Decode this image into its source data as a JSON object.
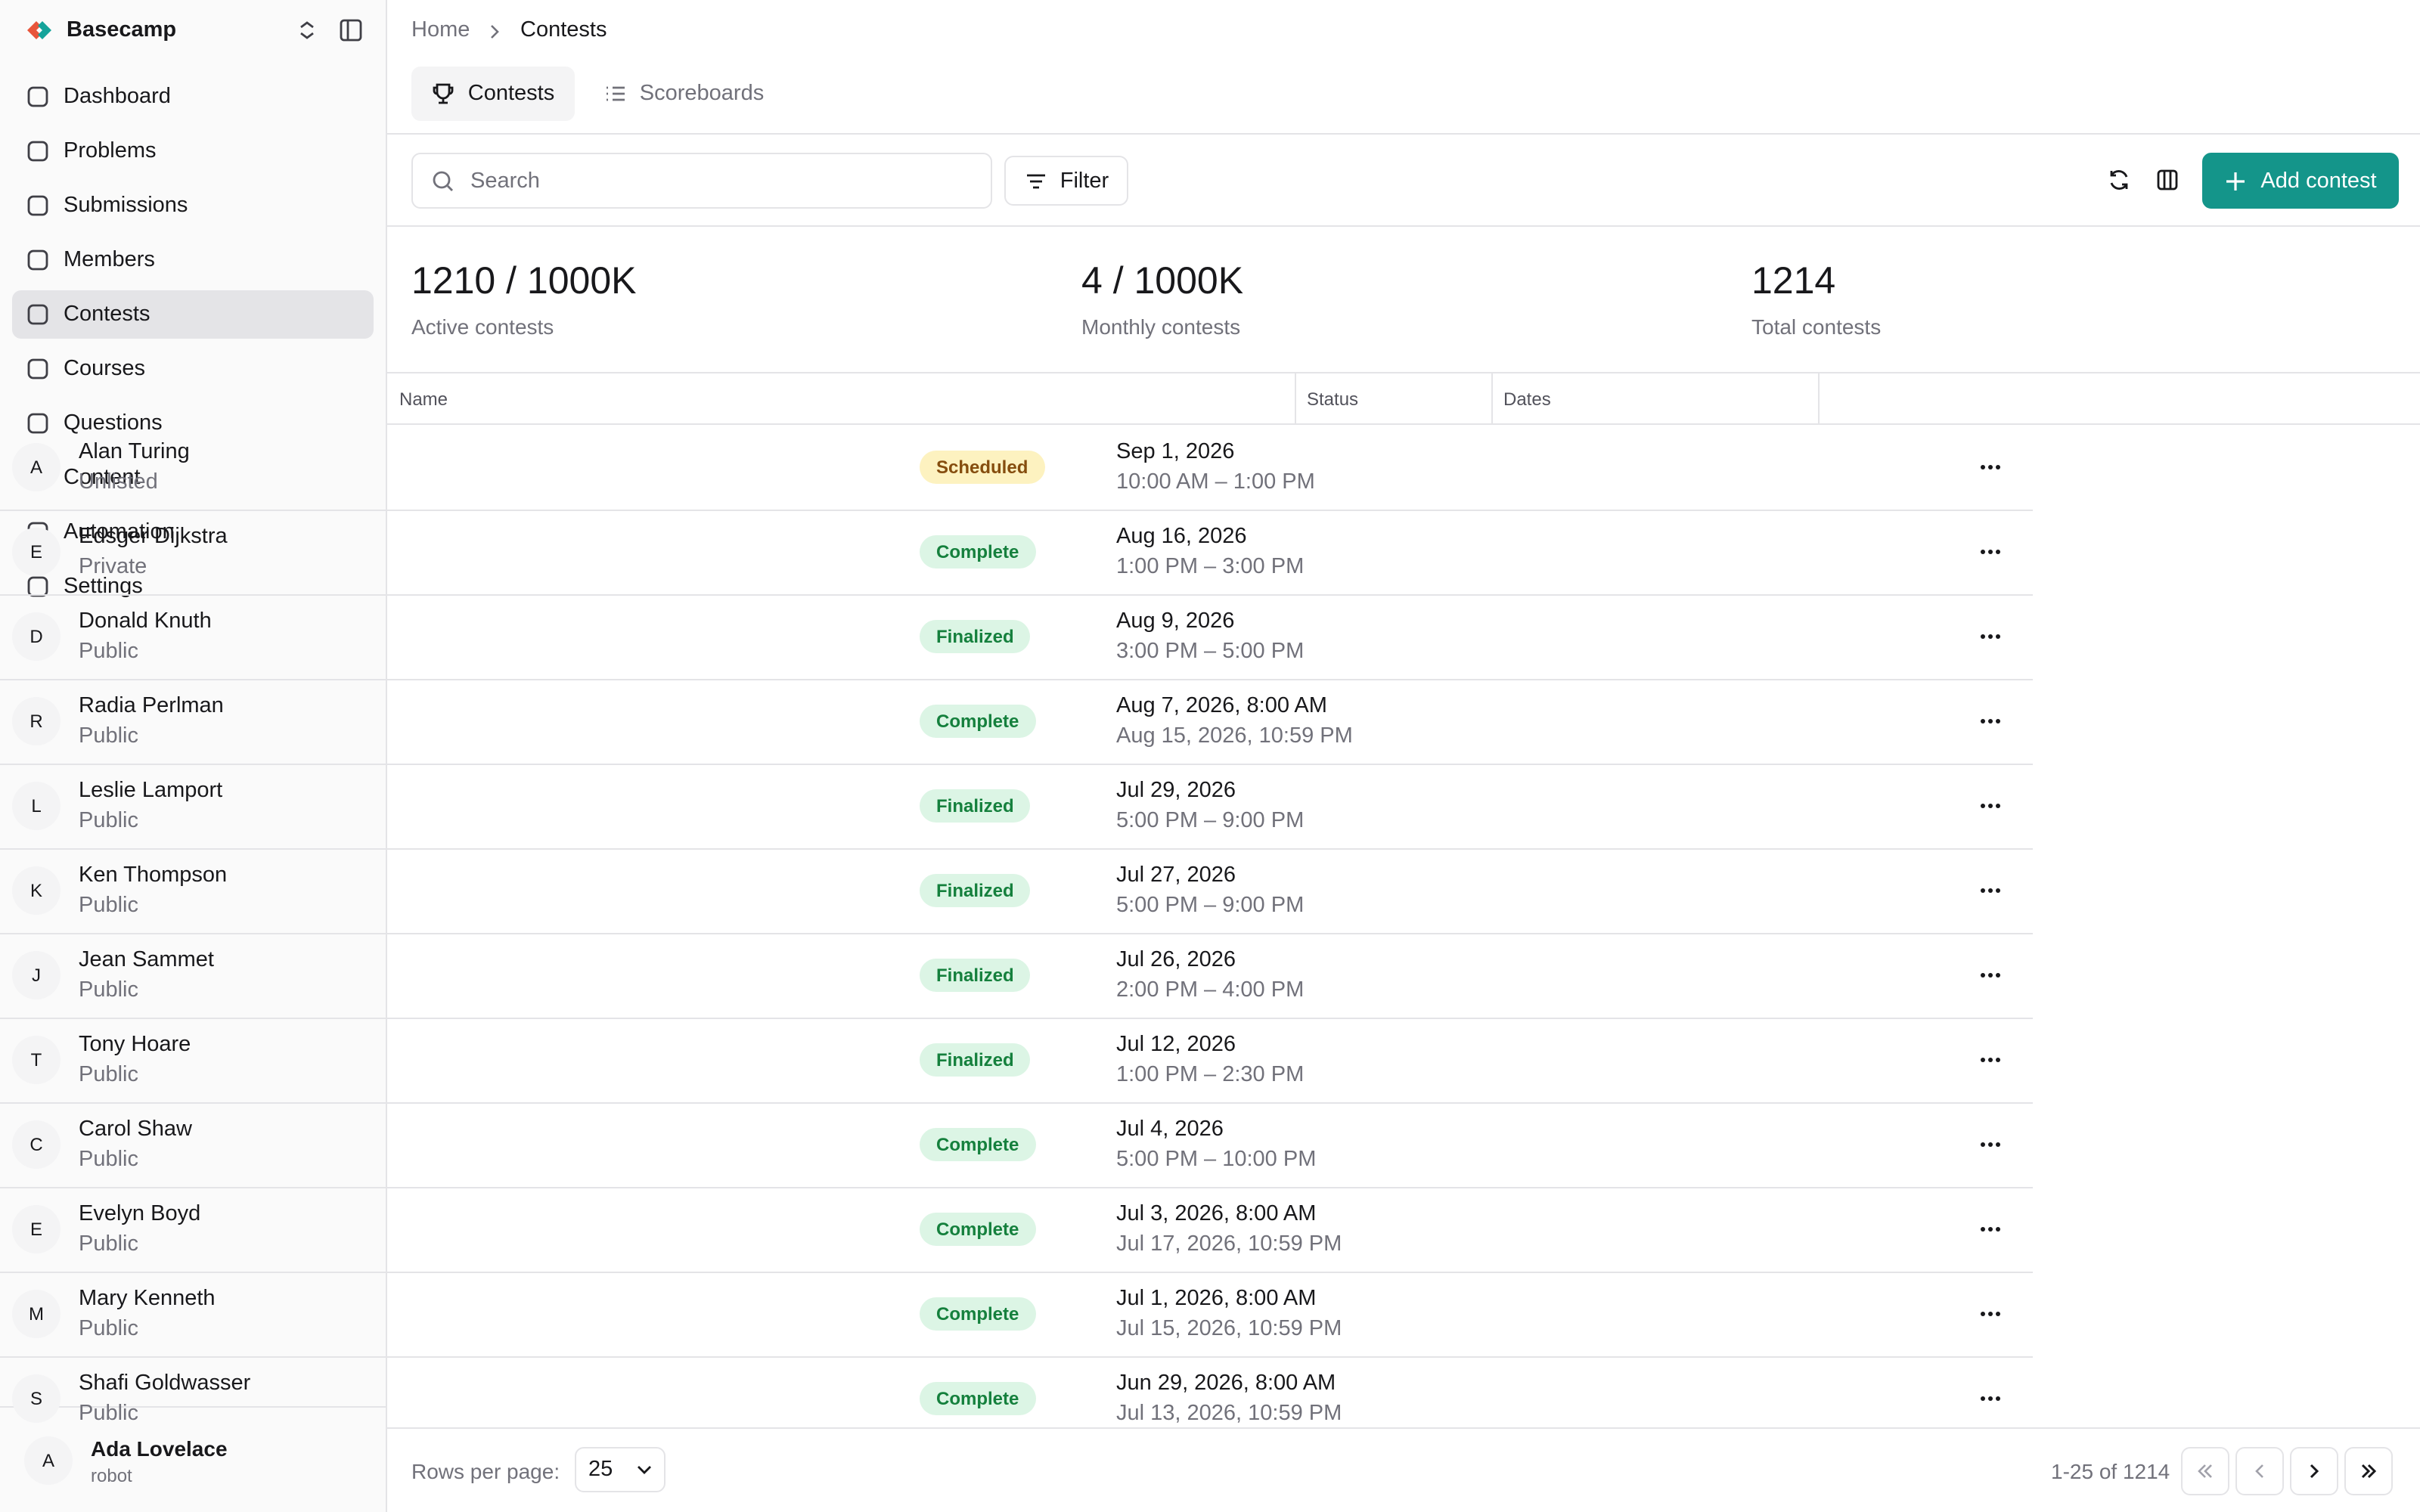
{
  "sidebar": {
    "brand": "Basecamp",
    "nav": [
      "Dashboard",
      "Problems",
      "Submissions",
      "Members",
      "Contests",
      "Courses",
      "Questions",
      "Content",
      "Automation",
      "Settings"
    ],
    "active": 4,
    "user": {
      "initial": "A",
      "name": "Ada Lovelace",
      "role": "robot"
    }
  },
  "breadcrumb": [
    "Home",
    "Contests"
  ],
  "tabs": [
    "Contests",
    "Scoreboards"
  ],
  "toolbar": {
    "search_placeholder": "Search",
    "filter": "Filter",
    "add": "Add contest"
  },
  "stats": [
    {
      "value": "1210 / 1000K",
      "label": "Active contests"
    },
    {
      "value": "4 / 1000K",
      "label": "Monthly contests"
    },
    {
      "value": "1214",
      "label": "Total contests"
    }
  ],
  "table": {
    "headers": [
      "Name",
      "Status",
      "Dates"
    ],
    "rows": [
      {
        "initial": "A",
        "name": "Alan Turing",
        "visibility": "Unlisted",
        "status": "Scheduled",
        "date1": "Sep 1, 2026",
        "date2": "10:00 AM – 1:00 PM"
      },
      {
        "initial": "E",
        "name": "Edsger Dijkstra",
        "visibility": "Private",
        "status": "Complete",
        "date1": "Aug 16, 2026",
        "date2": "1:00 PM – 3:00 PM"
      },
      {
        "initial": "D",
        "name": "Donald Knuth",
        "visibility": "Public",
        "status": "Finalized",
        "date1": "Aug 9, 2026",
        "date2": "3:00 PM – 5:00 PM"
      },
      {
        "initial": "R",
        "name": "Radia Perlman",
        "visibility": "Public",
        "status": "Complete",
        "date1": "Aug 7, 2026, 8:00 AM",
        "date2": "Aug 15, 2026, 10:59 PM"
      },
      {
        "initial": "L",
        "name": "Leslie Lamport",
        "visibility": "Public",
        "status": "Finalized",
        "date1": "Jul 29, 2026",
        "date2": "5:00 PM – 9:00 PM"
      },
      {
        "initial": "K",
        "name": "Ken Thompson",
        "visibility": "Public",
        "status": "Finalized",
        "date1": "Jul 27, 2026",
        "date2": "5:00 PM – 9:00 PM"
      },
      {
        "initial": "J",
        "name": "Jean Sammet",
        "visibility": "Public",
        "status": "Finalized",
        "date1": "Jul 26, 2026",
        "date2": "2:00 PM – 4:00 PM"
      },
      {
        "initial": "T",
        "name": "Tony Hoare",
        "visibility": "Public",
        "status": "Finalized",
        "date1": "Jul 12, 2026",
        "date2": "1:00 PM – 2:30 PM"
      },
      {
        "initial": "C",
        "name": "Carol Shaw",
        "visibility": "Public",
        "status": "Complete",
        "date1": "Jul 4, 2026",
        "date2": "5:00 PM – 10:00 PM"
      },
      {
        "initial": "E",
        "name": "Evelyn Boyd",
        "visibility": "Public",
        "status": "Complete",
        "date1": "Jul 3, 2026, 8:00 AM",
        "date2": "Jul 17, 2026, 10:59 PM"
      },
      {
        "initial": "M",
        "name": "Mary Kenneth",
        "visibility": "Public",
        "status": "Complete",
        "date1": "Jul 1, 2026, 8:00 AM",
        "date2": "Jul 15, 2026, 10:59 PM"
      },
      {
        "initial": "S",
        "name": "Shafi Goldwasser",
        "visibility": "Public",
        "status": "Complete",
        "date1": "Jun 29, 2026, 8:00 AM",
        "date2": "Jul 13, 2026, 10:59 PM"
      }
    ]
  },
  "footer": {
    "rows_label": "Rows per page:",
    "rows_value": "25",
    "range": "1-25 of 1214"
  }
}
